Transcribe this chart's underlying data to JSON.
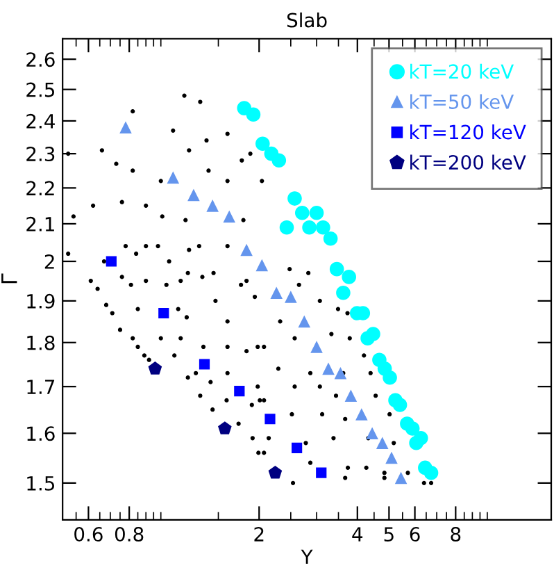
{
  "chart_data": {
    "type": "scatter",
    "title": "Slab",
    "xlabel": "Y",
    "ylabel": "Γ",
    "log": "xy",
    "xlim": [
      0.5,
      15.7
    ],
    "ylim": [
      1.43,
      2.67
    ],
    "xticks": [
      {
        "value": 0.55,
        "label": null
      },
      0.6,
      {
        "value": 0.65,
        "label": null
      },
      {
        "value": 0.7,
        "label": null
      },
      {
        "value": 0.75,
        "label": null
      },
      0.8,
      {
        "value": 0.85,
        "label": null
      },
      {
        "value": 0.9,
        "label": null
      },
      {
        "value": 0.95,
        "label": null
      },
      {
        "value": 1,
        "label": null
      },
      {
        "value": 1.5,
        "label": null
      },
      2,
      {
        "value": 2.5,
        "label": null
      },
      {
        "value": 3,
        "label": null
      },
      {
        "value": 3.5,
        "label": null
      },
      4,
      {
        "value": 4.5,
        "label": null
      },
      5,
      {
        "value": 5.5,
        "label": null
      },
      6,
      {
        "value": 6.5,
        "label": null
      },
      {
        "value": 7,
        "label": null
      },
      {
        "value": 7.5,
        "label": null
      },
      8,
      {
        "value": 8.5,
        "label": null
      },
      {
        "value": 9,
        "label": null
      },
      {
        "value": 9.5,
        "label": null
      },
      {
        "value": 10,
        "label": null
      }
    ],
    "yticks": [
      1.5,
      1.6,
      1.7,
      1.8,
      1.9,
      2,
      2.1,
      2.2,
      2.3,
      2.4,
      2.5,
      2.6
    ],
    "legend": "top right",
    "grid": false,
    "series": [
      {
        "color": "#000000",
        "marker": "circle",
        "x": [
          0.52,
          1.18,
          1.32,
          0.82,
          1.09,
          0.66,
          0.73,
          1.22,
          1.38,
          1.6,
          1.88,
          0.82,
          1.0,
          1.4,
          1.6,
          2.04,
          0.62,
          0.54,
          0.76,
          0.9,
          1.01,
          1.19,
          1.45,
          1.79,
          0.52,
          0.78,
          0.9,
          0.98,
          1.22,
          1.31,
          1.6,
          0.67,
          0.84,
          1.06,
          0.61,
          0.81,
          1.15,
          1.34,
          1.83,
          0.64,
          0.68,
          0.71,
          0.75,
          0.82,
          0.85,
          0.89,
          0.92,
          0.76,
          0.85,
          1.0,
          1.1,
          1.21,
          1.32,
          1.44,
          0.9,
          1.04,
          1.13,
          1.2,
          1.15,
          1.35,
          1.28,
          1.42,
          1.59,
          1.73,
          1.91,
          1.99,
          1.21,
          1.45,
          1.47,
          1.6,
          1.6,
          1.6,
          1.83,
          1.98,
          1.76,
          1.94,
          1.9,
          2.07,
          2.48,
          2.83,
          2.65,
          3.07,
          3.49,
          3.73,
          2.32,
          2.57,
          3.33,
          3.79,
          2.07,
          2.29,
          2.87,
          3.62,
          4.19,
          4.39,
          1.98,
          2.57,
          3.07,
          3.44,
          4.55,
          2.01,
          2.52,
          3.12,
          3.67,
          5.02,
          2.14,
          2.78,
          3.38,
          4.32,
          5.17,
          2.07,
          2.87,
          3.74,
          4.26,
          4.84,
          5.71,
          2.54,
          3.67,
          4.84,
          6.4,
          6.73,
          1.77
        ],
        "values": [
          2.3,
          2.48,
          2.46,
          2.43,
          2.37,
          2.31,
          2.27,
          2.31,
          2.34,
          2.36,
          2.3,
          2.25,
          2.22,
          2.25,
          2.22,
          2.22,
          2.15,
          2.12,
          2.16,
          2.15,
          2.12,
          2.11,
          null,
          2.11,
          2.02,
          2.04,
          2.04,
          2.04,
          2.03,
          2.04,
          2.04,
          2.0,
          2.02,
          2.0,
          1.95,
          1.94,
          1.95,
          1.96,
          1.95,
          1.93,
          1.89,
          1.87,
          1.83,
          1.81,
          1.79,
          1.77,
          1.76,
          1.96,
          1.88,
          1.81,
          1.77,
          1.72,
          1.68,
          1.65,
          1.95,
          1.94,
          1.88,
          1.86,
          1.81,
          1.79,
          1.73,
          1.71,
          1.67,
          1.62,
          1.59,
          1.56,
          1.97,
          1.97,
          1.9,
          1.85,
          1.79,
          1.73,
          1.78,
          1.79,
          1.94,
          1.91,
          1.66,
          1.67,
          1.98,
          1.97,
          1.94,
          1.9,
          1.88,
          1.87,
          1.85,
          1.81,
          1.82,
          1.81,
          1.79,
          1.74,
          1.73,
          1.73,
          1.77,
          1.73,
          1.7,
          1.7,
          1.7,
          1.68,
          1.68,
          1.67,
          1.64,
          1.64,
          1.63,
          1.64,
          1.59,
          1.58,
          1.59,
          1.59,
          1.58,
          1.56,
          1.54,
          1.53,
          1.53,
          1.52,
          1.52,
          1.5,
          1.51,
          1.51,
          1.5,
          1.5,
          2.28
        ]
      },
      {
        "name": "kT=20 keV",
        "color": "#00ffff",
        "marker": "circle",
        "x": [
          1.8,
          1.92,
          2.05,
          2.18,
          2.3,
          2.57,
          2.71,
          3.0,
          2.43,
          2.85,
          3.14,
          3.31,
          3.46,
          3.77,
          3.62,
          3.99,
          4.16,
          4.47,
          4.3,
          4.67,
          4.85,
          5.03,
          5.23,
          5.4,
          5.68,
          5.9,
          6.26,
          6.06,
          6.45,
          6.73
        ],
        "values": [
          2.44,
          2.42,
          2.33,
          2.3,
          2.28,
          2.17,
          2.13,
          2.13,
          2.09,
          2.09,
          2.09,
          2.06,
          1.98,
          1.96,
          1.92,
          1.87,
          1.87,
          1.82,
          1.81,
          1.76,
          1.74,
          1.72,
          1.67,
          1.66,
          1.62,
          1.61,
          1.59,
          1.58,
          1.53,
          1.52
        ]
      },
      {
        "name": "kT=50 keV",
        "color": "#6495ed",
        "marker": "triangle",
        "x": [
          0.78,
          1.09,
          1.26,
          1.44,
          1.62,
          1.83,
          2.04,
          2.26,
          2.5,
          2.75,
          3.0,
          3.26,
          3.55,
          3.82,
          4.12,
          4.44,
          4.77,
          5.09,
          5.44
        ],
        "values": [
          2.38,
          2.23,
          2.18,
          2.15,
          2.12,
          2.03,
          1.99,
          1.92,
          1.91,
          1.85,
          1.79,
          1.74,
          1.73,
          1.68,
          1.64,
          1.6,
          1.58,
          1.55,
          1.51
        ]
      },
      {
        "name": "kT=120 keV",
        "color": "#0000ff",
        "marker": "square",
        "x": [
          0.705,
          1.02,
          1.36,
          1.74,
          2.16,
          2.61,
          3.1
        ],
        "values": [
          2.0,
          1.87,
          1.75,
          1.69,
          1.63,
          1.57,
          1.52
        ]
      },
      {
        "name": "kT=200 keV",
        "color": "#000080",
        "x": [
          0.96,
          1.57,
          2.24
        ],
        "values": [
          1.74,
          1.61,
          1.52
        ]
      }
    ]
  }
}
